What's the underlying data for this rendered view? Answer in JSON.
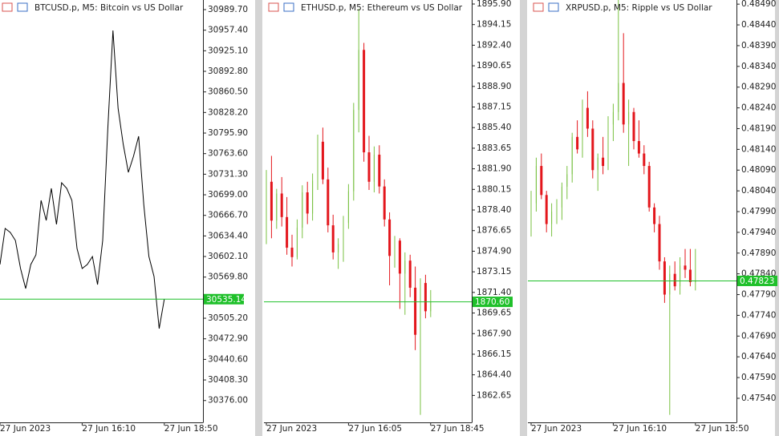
{
  "chart_data": [
    {
      "type": "line",
      "title": "BTCUSD.p, M5:  Bitcoin vs US Dollar",
      "color": "#000000",
      "categories": [
        "27 Jun 2023",
        null,
        null,
        null,
        null,
        null,
        null,
        null,
        null,
        null,
        null,
        null,
        null,
        null,
        null,
        null,
        "27 Jun 16:10",
        null,
        null,
        null,
        null,
        null,
        null,
        null,
        null,
        null,
        null,
        null,
        null,
        null,
        null,
        null,
        "27 Jun 18:50"
      ],
      "values": [
        30589.6,
        30646.2,
        30639.9,
        30627.3,
        30583.3,
        30551.8,
        30589.6,
        30604.7,
        30690.2,
        30658.8,
        30709.1,
        30652.5,
        30717.9,
        30709.1,
        30690.2,
        30614.7,
        30583.3,
        30589.6,
        30602.1,
        30558.1,
        30627.3,
        30803.5,
        30957.0,
        30834.9,
        30778.3,
        30734.3,
        30759.4,
        30790.9,
        30683.9,
        30602.1,
        30570.7,
        30488.9,
        30535.14
      ],
      "ylim": [
        30341.7,
        31004.8
      ],
      "yticks": [
        {
          "value": 30989.7,
          "label": "30989.70"
        },
        {
          "value": 30957.4,
          "label": "30957.40"
        },
        {
          "value": 30925.1,
          "label": "30925.10"
        },
        {
          "value": 30892.8,
          "label": "30892.80"
        },
        {
          "value": 30860.5,
          "label": "30860.50"
        },
        {
          "value": 30828.2,
          "label": "30828.20"
        },
        {
          "value": 30795.9,
          "label": "30795.90"
        },
        {
          "value": 30763.6,
          "label": "30763.60"
        },
        {
          "value": 30731.3,
          "label": "30731.30"
        },
        {
          "value": 30699,
          "label": "30699.00"
        },
        {
          "value": 30666.7,
          "label": "30666.70"
        },
        {
          "value": 30634.4,
          "label": "30634.40"
        },
        {
          "value": 30602.1,
          "label": "30602.10"
        },
        {
          "value": 30569.8,
          "label": "30569.80"
        },
        {
          "value": 30505.2,
          "label": "30505.20"
        },
        {
          "value": 30472.9,
          "label": "30472.90"
        },
        {
          "value": 30440.6,
          "label": "30440.60"
        },
        {
          "value": 30408.3,
          "label": "30408.30"
        },
        {
          "value": 30376,
          "label": "30376.00"
        }
      ],
      "current_price": 30535.14,
      "price_line_color": "#1fc02a"
    },
    {
      "type": "candlestick",
      "title": "ETHUSD.p, M5:  Ethereum vs US Dollar",
      "up_color": "#79c142",
      "down_color": "#e3161c",
      "categories": [
        "27 Jun 2023",
        null,
        null,
        null,
        null,
        null,
        null,
        null,
        null,
        null,
        null,
        null,
        null,
        null,
        null,
        null,
        "27 Jun 16:05",
        null,
        null,
        null,
        null,
        null,
        null,
        null,
        null,
        null,
        null,
        null,
        null,
        null,
        null,
        null,
        "27 Jun 18:45"
      ],
      "open": [
        1879.5,
        1880.8,
        1877.5,
        1879.8,
        1877.8,
        1875.2,
        1874.4,
        1876.9,
        1879.9,
        1878.1,
        1880.9,
        1884.2,
        1881.0,
        1877.1,
        1874.8,
        1875.5,
        1877.3,
        1880.0,
        1886.9,
        1892.0,
        1883.3,
        1880.8,
        1883.1,
        1880.4,
        1877.6,
        1874.5,
        1875.8,
        1873.0,
        1874.1,
        1871.8,
        1867.8,
        1872.2,
        1869.8
      ],
      "high": [
        1881.8,
        1883.0,
        1880.2,
        1881.2,
        1879.5,
        1876.3,
        1877.6,
        1880.5,
        1880.8,
        1881.5,
        1884.8,
        1885.4,
        1882.0,
        1878.0,
        1876.0,
        1877.9,
        1880.6,
        1887.5,
        1895.5,
        1892.6,
        1884.7,
        1883.8,
        1883.9,
        1881.0,
        1878.2,
        1876.2,
        1876.0,
        1874.8,
        1874.6,
        1873.6,
        1872.6,
        1872.9,
        1871.6
      ],
      "low": [
        1875.5,
        1876.0,
        1876.8,
        1877.0,
        1874.6,
        1873.6,
        1874.2,
        1876.0,
        1877.2,
        1877.5,
        1880.1,
        1880.6,
        1876.5,
        1874.2,
        1873.4,
        1874.0,
        1876.8,
        1879.2,
        1885.0,
        1882.5,
        1880.1,
        1879.9,
        1879.8,
        1877.0,
        1872.0,
        1873.5,
        1870.0,
        1869.5,
        1871.0,
        1866.5,
        1861.0,
        1869.2,
        1869.3
      ],
      "close": [
        1880.8,
        1877.5,
        1879.8,
        1877.8,
        1875.2,
        1874.4,
        1876.9,
        1879.9,
        1878.1,
        1880.9,
        1884.2,
        1881.0,
        1877.1,
        1874.8,
        1875.5,
        1877.3,
        1880.0,
        1886.9,
        1892.0,
        1883.3,
        1880.8,
        1883.1,
        1880.4,
        1877.6,
        1874.5,
        1875.8,
        1873.0,
        1874.1,
        1871.8,
        1867.8,
        1872.2,
        1869.8,
        1870.6
      ],
      "ylim": [
        1860.36,
        1896.24
      ],
      "yticks": [
        {
          "value": 1895.9,
          "label": "1895.90"
        },
        1894.15,
        {
          "value": 1892.4,
          "label": "1892.40"
        },
        1890.65,
        {
          "value": 1888.9,
          "label": "1888.90"
        },
        1887.15,
        {
          "value": 1885.4,
          "label": "1885.40"
        },
        1883.65,
        {
          "value": 1881.9,
          "label": "1881.90"
        },
        1880.15,
        {
          "value": 1878.4,
          "label": "1878.40"
        },
        1876.65,
        {
          "value": 1874.9,
          "label": "1874.90"
        },
        1873.15,
        {
          "value": 1871.4,
          "label": "1871.40"
        },
        1869.65,
        {
          "value": 1867.9,
          "label": "1867.90"
        },
        1866.15,
        {
          "value": 1864.4,
          "label": "1864.40"
        },
        1862.65
      ],
      "current_price": {
        "value": 1870.6,
        "label": "1870.60"
      },
      "price_line_color": "#1fc02a"
    },
    {
      "type": "candlestick",
      "title": "XRPUSD.p, M5:  Ripple vs US Dollar",
      "up_color": "#79c142",
      "down_color": "#e3161c",
      "categories": [
        "27 Jun 2023",
        null,
        null,
        null,
        null,
        null,
        null,
        null,
        null,
        null,
        null,
        null,
        null,
        null,
        null,
        null,
        "27 Jun 16:10",
        null,
        null,
        null,
        null,
        null,
        null,
        null,
        null,
        null,
        null,
        null,
        null,
        null,
        null,
        null,
        "27 Jun 18:50"
      ],
      "open": [
        0.4798,
        0.4801,
        0.481,
        0.4803,
        0.4796,
        0.4799,
        0.48,
        0.4805,
        0.4808,
        0.4817,
        0.4814,
        0.4824,
        0.4819,
        0.4809,
        0.4812,
        0.481,
        0.482,
        0.4823,
        0.483,
        0.482,
        0.4823,
        0.4816,
        0.4813,
        0.481,
        0.48,
        0.4796,
        0.4787,
        0.4779,
        0.4784,
        0.4781,
        0.4786,
        0.4785,
        0.4782
      ],
      "high": [
        0.4804,
        0.4812,
        0.4813,
        0.4804,
        0.4801,
        0.4802,
        0.4806,
        0.481,
        0.4818,
        0.4821,
        0.4826,
        0.4828,
        0.4821,
        0.4813,
        0.4817,
        0.4822,
        0.4825,
        0.485,
        0.4842,
        0.4826,
        0.4824,
        0.4821,
        0.4815,
        0.4811,
        0.4801,
        0.4798,
        0.4788,
        0.4786,
        0.4787,
        0.4788,
        0.479,
        0.479,
        0.479
      ],
      "low": [
        0.4793,
        0.4799,
        0.4802,
        0.4794,
        0.4793,
        0.4796,
        0.4797,
        0.4802,
        0.4806,
        0.4813,
        0.4812,
        0.4817,
        0.4807,
        0.4804,
        0.4808,
        0.4809,
        0.4816,
        0.4821,
        0.4818,
        0.481,
        0.4814,
        0.4812,
        0.4808,
        0.4799,
        0.4794,
        0.4785,
        0.4777,
        0.475,
        0.478,
        0.4779,
        0.4783,
        0.4781,
        0.478
      ],
      "close": [
        0.4801,
        0.481,
        0.4803,
        0.4796,
        0.4799,
        0.48,
        0.4805,
        0.4808,
        0.4817,
        0.4814,
        0.4824,
        0.4819,
        0.4809,
        0.4812,
        0.481,
        0.482,
        0.4823,
        0.483,
        0.482,
        0.4823,
        0.4816,
        0.4813,
        0.481,
        0.48,
        0.4796,
        0.4787,
        0.4779,
        0.4784,
        0.4781,
        0.4786,
        0.4785,
        0.4782,
        0.47823
      ],
      "ylim": [
        0.47482,
        0.485
      ],
      "yticks": [
        {
          "value": 0.4849,
          "label": "0.48490"
        },
        {
          "value": 0.4844,
          "label": "0.48440"
        },
        {
          "value": 0.4839,
          "label": "0.48390"
        },
        {
          "value": 0.4834,
          "label": "0.48340"
        },
        {
          "value": 0.4829,
          "label": "0.48290"
        },
        {
          "value": 0.4824,
          "label": "0.48240"
        },
        {
          "value": 0.4819,
          "label": "0.48190"
        },
        {
          "value": 0.4814,
          "label": "0.48140"
        },
        {
          "value": 0.4809,
          "label": "0.48090"
        },
        {
          "value": 0.4804,
          "label": "0.48040"
        },
        {
          "value": 0.4799,
          "label": "0.47990"
        },
        {
          "value": 0.4794,
          "label": "0.47940"
        },
        {
          "value": 0.4789,
          "label": "0.47890"
        },
        {
          "value": 0.4784,
          "label": "0.47840"
        },
        {
          "value": 0.4779,
          "label": "0.47790"
        },
        {
          "value": 0.4774,
          "label": "0.47740"
        },
        {
          "value": 0.4769,
          "label": "0.47690"
        },
        {
          "value": 0.4764,
          "label": "0.47640"
        },
        {
          "value": 0.4759,
          "label": "0.47590"
        },
        {
          "value": 0.4754,
          "label": "0.47540"
        }
      ],
      "current_price": 0.47823,
      "price_line_color": "#1fc02a"
    }
  ]
}
